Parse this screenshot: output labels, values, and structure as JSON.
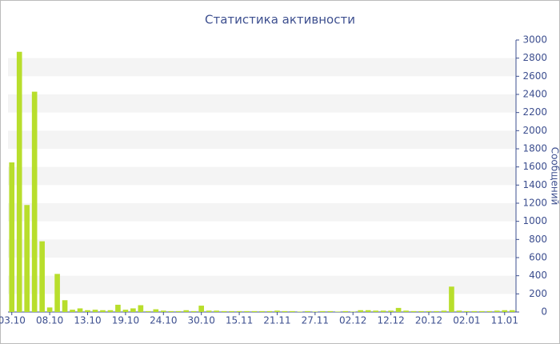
{
  "chart_data": {
    "type": "bar",
    "title": "Статистика активности",
    "y_label": "Сообщений",
    "categories": [
      "03.10",
      null,
      null,
      null,
      null,
      "08.10",
      null,
      null,
      null,
      null,
      "13.10",
      null,
      null,
      null,
      null,
      "19.10",
      null,
      null,
      null,
      null,
      "24.10",
      null,
      null,
      null,
      null,
      "30.10",
      null,
      null,
      null,
      null,
      "15.11",
      null,
      null,
      null,
      null,
      "21.11",
      null,
      null,
      null,
      null,
      "27.11",
      null,
      null,
      null,
      null,
      "02.12",
      null,
      null,
      null,
      null,
      "12.12",
      null,
      null,
      null,
      null,
      "20.12",
      null,
      null,
      null,
      null,
      "02.01",
      null,
      null,
      null,
      null,
      "11.01",
      null
    ],
    "values": [
      1650,
      2870,
      1180,
      2430,
      780,
      50,
      420,
      130,
      25,
      40,
      20,
      25,
      20,
      20,
      80,
      25,
      40,
      75,
      10,
      30,
      15,
      10,
      10,
      20,
      10,
      70,
      15,
      15,
      10,
      10,
      10,
      10,
      10,
      10,
      10,
      15,
      10,
      10,
      5,
      10,
      5,
      10,
      10,
      5,
      10,
      5,
      20,
      20,
      15,
      15,
      15,
      45,
      15,
      10,
      10,
      10,
      10,
      15,
      280,
      15,
      10,
      10,
      10,
      10,
      15,
      20,
      20
    ],
    "color": "#b8de2c",
    "ylim": [
      0,
      3000
    ],
    "yticks": [
      0,
      200,
      400,
      600,
      800,
      1000,
      1200,
      1400,
      1600,
      1800,
      2000,
      2200,
      2400,
      2600,
      2800,
      3000
    ],
    "grid": true
  }
}
